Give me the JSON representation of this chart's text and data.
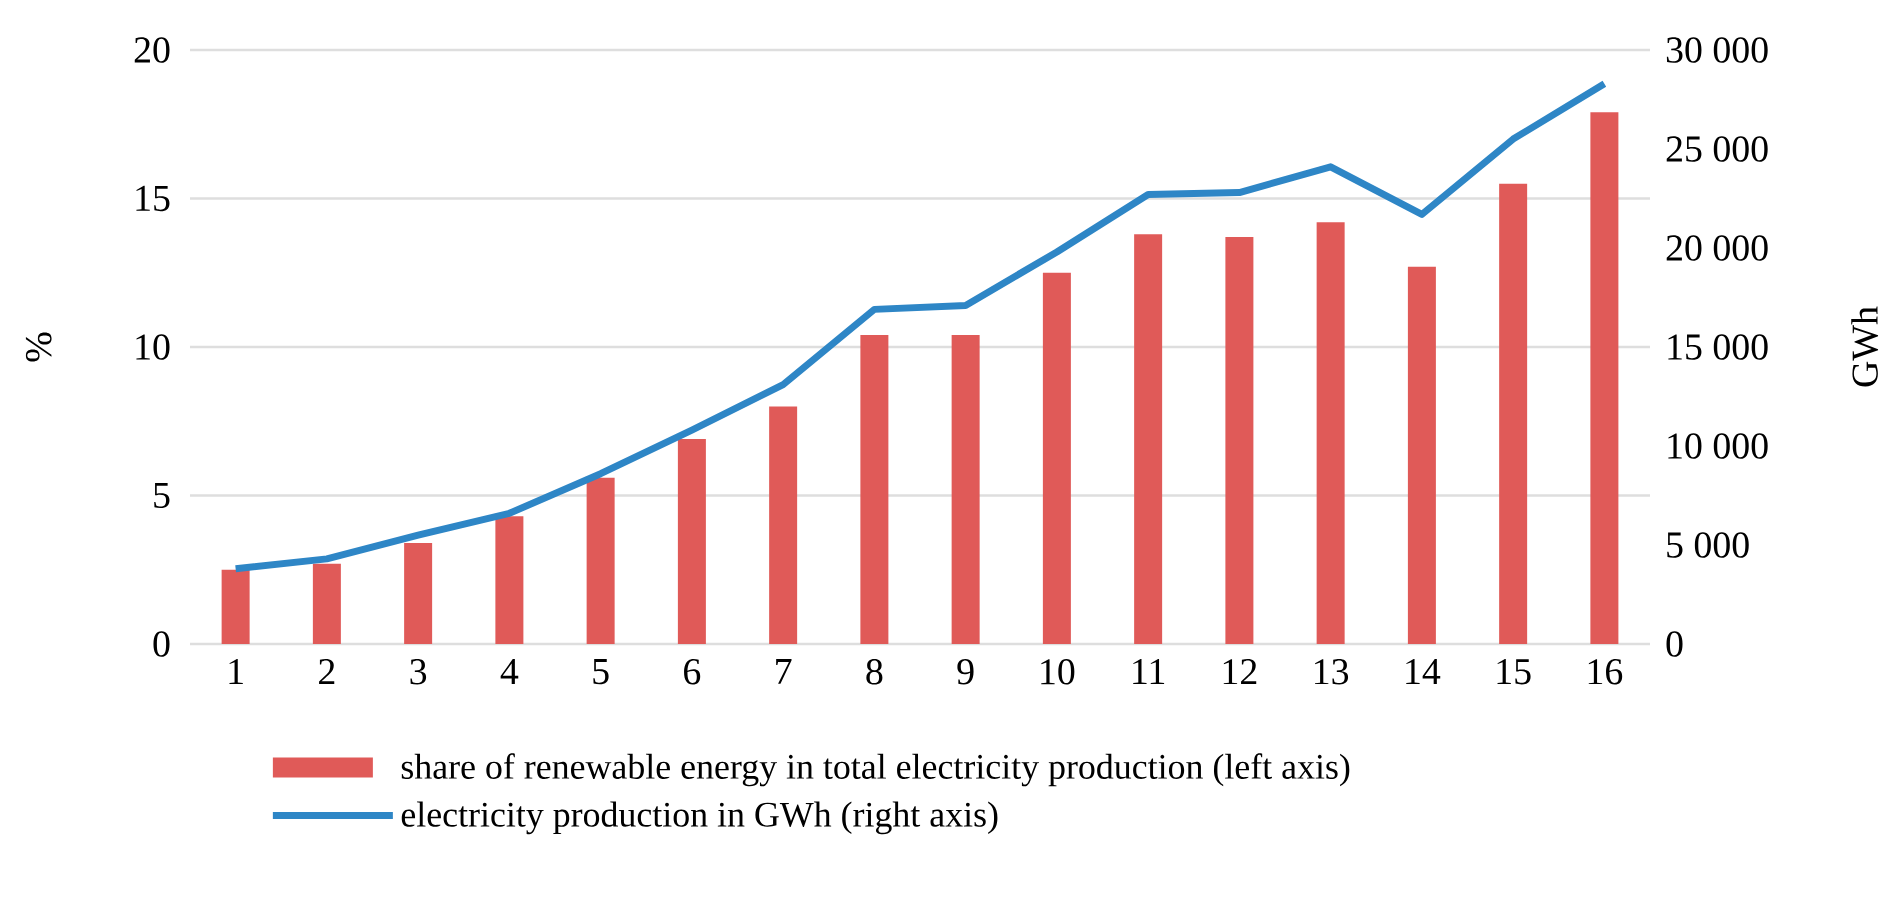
{
  "chart_data": {
    "type": "bar",
    "ylabel": "%",
    "y2label": "GWh",
    "categories": [
      "1",
      "2",
      "3",
      "4",
      "5",
      "6",
      "7",
      "8",
      "9",
      "10",
      "11",
      "12",
      "13",
      "14",
      "15",
      "16"
    ],
    "series": [
      {
        "name": "share of renewable energy in total electricity production (left axis)",
        "color": "#e05a58",
        "values": [
          2.5,
          2.7,
          3.4,
          4.3,
          5.6,
          6.9,
          8.0,
          10.4,
          10.4,
          12.5,
          13.8,
          13.7,
          14.2,
          12.7,
          15.5,
          17.9
        ]
      },
      {
        "name": "electricity production in GWh (right axis)",
        "type": "line",
        "axis": "y2",
        "color": "#2e86c6",
        "values": [
          3800,
          4300,
          5500,
          6600,
          8600,
          10800,
          13100,
          16900,
          17100,
          19800,
          22700,
          22800,
          24100,
          21700,
          25500,
          28300
        ]
      }
    ],
    "ylim": [
      0,
      20
    ],
    "yticks": [
      0,
      5,
      10,
      15,
      20
    ],
    "y2lim": [
      0,
      30000
    ],
    "y2ticks": [
      0,
      {
        "value": 5000,
        "label": "5 000"
      },
      {
        "value": 10000,
        "label": "10 000"
      },
      {
        "value": 15000,
        "label": "15 000"
      },
      {
        "value": 20000,
        "label": "20 000"
      },
      {
        "value": 25000,
        "label": "25 000"
      },
      {
        "value": 30000,
        "label": "30 000"
      }
    ],
    "grid": "y",
    "legend": "bottom"
  }
}
